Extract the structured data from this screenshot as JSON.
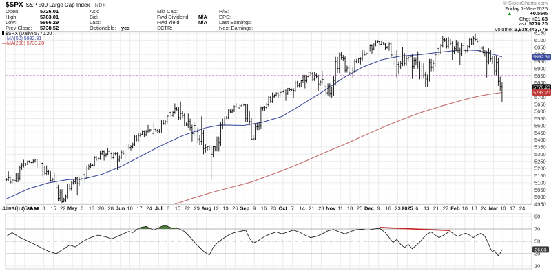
{
  "header": {
    "symbol": "$SPX",
    "name": "S&P 500 Large Cap Index",
    "exchange": "INDX"
  },
  "quote": {
    "columns": [
      {
        "rows": [
          {
            "label": "Open:",
            "value": "5726.01"
          },
          {
            "label": "High:",
            "value": "5783.01"
          },
          {
            "label": "Low:",
            "value": "5666.29"
          },
          {
            "label": "Prev Close:",
            "value": "5738.52"
          }
        ]
      },
      {
        "rows": [
          {
            "label": "Ask:",
            "value": ""
          },
          {
            "label": "Bid:",
            "value": ""
          },
          {
            "label": "Last:",
            "value": ""
          },
          {
            "label": "Optionable:",
            "value": "yes"
          }
        ]
      },
      {
        "rows": [
          {
            "label": "Mkt Cap:",
            "value": ""
          },
          {
            "label": "Fwd Dividend:",
            "value": "N/A"
          },
          {
            "label": "Fwd Yield:",
            "value": "N/A"
          },
          {
            "label": "SCTR:",
            "value": ""
          }
        ]
      },
      {
        "rows": [
          {
            "label": "P/E:",
            "value": ""
          },
          {
            "label": "EPS:",
            "value": ""
          },
          {
            "label": "Last Earnings:",
            "value": ""
          },
          {
            "label": "Next Earnings:",
            "value": ""
          }
        ]
      }
    ]
  },
  "right_panel": {
    "lines": [
      {
        "name": "copyright",
        "value": "© StockCharts.com",
        "gray": true
      },
      {
        "name": "date",
        "value": "Friday 7-Mar-2025"
      },
      {
        "name": "pct-change",
        "value": "+0.55%",
        "bold": true,
        "arrow": true
      },
      {
        "name": "change",
        "label": "Chg:",
        "value": "+31.68",
        "bold": true
      },
      {
        "name": "last",
        "label": "Last:",
        "value": "5770.20",
        "bold": true
      },
      {
        "name": "volume",
        "label": "Volume:",
        "value": "3,938,443,776",
        "bold": true
      }
    ]
  },
  "icons": {
    "up_triangle": "▲",
    "line_dash": "—"
  },
  "legend": {
    "main": "$SPX (Daily) 5770.20",
    "ma50": "MA(50) 5982.31",
    "ma200": "MA(200) 5733.20"
  },
  "rsi": {
    "title": "RSI(14)",
    "value": "36.83"
  },
  "colors": {
    "grid": "#ebebeb",
    "pane_border": "#c8c8c8",
    "bar": "#111111",
    "ma50": "#3d4b9e",
    "ma200": "#c46a6a",
    "purple_line": "#b23ab2",
    "axis_text": "#333333",
    "rsi_line": "#222222",
    "rsi_green": "#4e7d3e",
    "rsi_trend": "#cc2222",
    "flag_last_bg": "#111111",
    "flag_ma50_bg": "#3d4b9e",
    "flag_ma200_bg": "#c03a3a",
    "flag_rsi_bg": "#3b3b3b"
  },
  "chart_data": {
    "type": "ohlc",
    "title": "$SPX (Daily)",
    "y_axis": {
      "min": 4950,
      "max": 6150,
      "step": 50
    },
    "rsi_axis": [
      90,
      70,
      50,
      30,
      10
    ],
    "x_labels": [
      "11",
      "18",
      "25",
      "Apr",
      "8",
      "15",
      "22",
      "May",
      "6",
      "13",
      "20",
      "28",
      "Jun",
      "10",
      "17",
      "24",
      "Jul",
      "8",
      "15",
      "22",
      "29",
      "Aug",
      "12",
      "19",
      "26",
      "Sep",
      "9",
      "16",
      "23",
      "Oct",
      "7",
      "14",
      "21",
      "28",
      "Nov",
      "11",
      "18",
      "25",
      "Dec",
      "9",
      "16",
      "23",
      "2025",
      "6",
      "13",
      "21",
      "27",
      "Feb",
      "10",
      "18",
      "24",
      "Mar",
      "10",
      "17",
      "24"
    ],
    "weeks_total": 55,
    "weekly_ohlc": [
      [
        5123,
        5180,
        5092,
        5117
      ],
      [
        5117,
        5261,
        5104,
        5234
      ],
      [
        5234,
        5264,
        5216,
        5254
      ],
      [
        5254,
        5264,
        5146,
        5204
      ],
      [
        5204,
        5222,
        5107,
        5123
      ],
      [
        5123,
        5168,
        4954,
        4967
      ],
      [
        4967,
        5114,
        4963,
        5100
      ],
      [
        5100,
        5139,
        5011,
        5128
      ],
      [
        5128,
        5239,
        5101,
        5223
      ],
      [
        5223,
        5325,
        5217,
        5303
      ],
      [
        5303,
        5342,
        5256,
        5305
      ],
      [
        5305,
        5315,
        5191,
        5278
      ],
      [
        5278,
        5375,
        5234,
        5347
      ],
      [
        5347,
        5447,
        5327,
        5432
      ],
      [
        5432,
        5505,
        5420,
        5465
      ],
      [
        5465,
        5523,
        5434,
        5460
      ],
      [
        5460,
        5570,
        5446,
        5567
      ],
      [
        5567,
        5656,
        5563,
        5615
      ],
      [
        5615,
        5670,
        5497,
        5505
      ],
      [
        5505,
        5585,
        5390,
        5459
      ],
      [
        5459,
        5566,
        5300,
        5347
      ],
      [
        5347,
        5358,
        5119,
        5344
      ],
      [
        5344,
        5563,
        5319,
        5554
      ],
      [
        5554,
        5643,
        5546,
        5634
      ],
      [
        5634,
        5652,
        5560,
        5648
      ],
      [
        5648,
        5651,
        5403,
        5408
      ],
      [
        5408,
        5636,
        5402,
        5626
      ],
      [
        5626,
        5733,
        5604,
        5703
      ],
      [
        5703,
        5767,
        5696,
        5738
      ],
      [
        5738,
        5765,
        5674,
        5751
      ],
      [
        5751,
        5822,
        5696,
        5815
      ],
      [
        5815,
        5878,
        5762,
        5865
      ],
      [
        5865,
        5878,
        5743,
        5808
      ],
      [
        5808,
        5886,
        5703,
        5729
      ],
      [
        5729,
        6012,
        5697,
        5996
      ],
      [
        5996,
        6017,
        5853,
        5871
      ],
      [
        5871,
        5972,
        5832,
        5969
      ],
      [
        5969,
        6044,
        5930,
        6032
      ],
      [
        6032,
        6100,
        6003,
        6090
      ],
      [
        6090,
        6092,
        6033,
        6051
      ],
      [
        6051,
        6085,
        5832,
        5931
      ],
      [
        5931,
        6049,
        5866,
        5971
      ],
      [
        5971,
        6021,
        5829,
        5942
      ],
      [
        5942,
        6022,
        5773,
        5827
      ],
      [
        5827,
        6018,
        5773,
        5997
      ],
      [
        5997,
        6128,
        5994,
        6101
      ],
      [
        6101,
        6121,
        5962,
        6041
      ],
      [
        6041,
        6102,
        5923,
        6026
      ],
      [
        6026,
        6127,
        6003,
        6115
      ],
      [
        6115,
        6147,
        6008,
        6013
      ],
      [
        6013,
        6043,
        5837,
        5955
      ],
      [
        5955,
        5986,
        5666,
        5770
      ]
    ],
    "ma50_points": [
      [
        0,
        4988
      ],
      [
        12,
        5060
      ],
      [
        22,
        5100
      ],
      [
        32,
        5122
      ],
      [
        40,
        5126
      ],
      [
        50,
        5160
      ],
      [
        60,
        5215
      ],
      [
        70,
        5285
      ],
      [
        80,
        5355
      ],
      [
        92,
        5430
      ],
      [
        104,
        5485
      ],
      [
        112,
        5505
      ],
      [
        124,
        5502
      ],
      [
        134,
        5525
      ],
      [
        144,
        5565
      ],
      [
        154,
        5645
      ],
      [
        166,
        5745
      ],
      [
        176,
        5835
      ],
      [
        186,
        5910
      ],
      [
        196,
        5962
      ],
      [
        206,
        5988
      ],
      [
        216,
        5998
      ],
      [
        228,
        6018
      ],
      [
        238,
        6032
      ],
      [
        246,
        6028
      ],
      [
        252,
        6010
      ],
      [
        259,
        5982
      ]
    ],
    "ma200_points": [
      [
        88,
        4950
      ],
      [
        98,
        4995
      ],
      [
        108,
        5035
      ],
      [
        118,
        5070
      ],
      [
        128,
        5105
      ],
      [
        138,
        5155
      ],
      [
        146,
        5195
      ],
      [
        156,
        5250
      ],
      [
        166,
        5310
      ],
      [
        176,
        5365
      ],
      [
        186,
        5425
      ],
      [
        196,
        5485
      ],
      [
        206,
        5540
      ],
      [
        216,
        5590
      ],
      [
        228,
        5640
      ],
      [
        238,
        5678
      ],
      [
        246,
        5705
      ],
      [
        252,
        5720
      ],
      [
        259,
        5733
      ]
    ],
    "rsi_points": [
      [
        0,
        58
      ],
      [
        3,
        64
      ],
      [
        6,
        58
      ],
      [
        10,
        52
      ],
      [
        14,
        46
      ],
      [
        18,
        40
      ],
      [
        22,
        34
      ],
      [
        26,
        30
      ],
      [
        29,
        36
      ],
      [
        33,
        44
      ],
      [
        36,
        41
      ],
      [
        40,
        50
      ],
      [
        44,
        56
      ],
      [
        48,
        60
      ],
      [
        52,
        57
      ],
      [
        55,
        54
      ],
      [
        58,
        58
      ],
      [
        61,
        62
      ],
      [
        64,
        66
      ],
      [
        66,
        64
      ],
      [
        69,
        71
      ],
      [
        71,
        73
      ],
      [
        73,
        74
      ],
      [
        75,
        71
      ],
      [
        77,
        68
      ],
      [
        79,
        71
      ],
      [
        81,
        74
      ],
      [
        83,
        76
      ],
      [
        85,
        73
      ],
      [
        87,
        71
      ],
      [
        89,
        72
      ],
      [
        91,
        69
      ],
      [
        93,
        66
      ],
      [
        95,
        60
      ],
      [
        97,
        53
      ],
      [
        99,
        46
      ],
      [
        101,
        40
      ],
      [
        103,
        34
      ],
      [
        106,
        28
      ],
      [
        108,
        40
      ],
      [
        110,
        47
      ],
      [
        113,
        54
      ],
      [
        116,
        60
      ],
      [
        119,
        64
      ],
      [
        122,
        66
      ],
      [
        125,
        68
      ],
      [
        127,
        55
      ],
      [
        129,
        47
      ],
      [
        132,
        52
      ],
      [
        135,
        58
      ],
      [
        138,
        62
      ],
      [
        141,
        65
      ],
      [
        144,
        62
      ],
      [
        147,
        65
      ],
      [
        150,
        68
      ],
      [
        153,
        65
      ],
      [
        156,
        60
      ],
      [
        159,
        56
      ],
      [
        162,
        58
      ],
      [
        165,
        62
      ],
      [
        168,
        67
      ],
      [
        171,
        69
      ],
      [
        174,
        65
      ],
      [
        177,
        62
      ],
      [
        180,
        66
      ],
      [
        183,
        69
      ],
      [
        186,
        69.5
      ],
      [
        189,
        68
      ],
      [
        192,
        70
      ],
      [
        195,
        71
      ],
      [
        198,
        64
      ],
      [
        200,
        56
      ],
      [
        202,
        48
      ],
      [
        204,
        53
      ],
      [
        206,
        45
      ],
      [
        208,
        40
      ],
      [
        210,
        45
      ],
      [
        212,
        38
      ],
      [
        214,
        43
      ],
      [
        216,
        49
      ],
      [
        218,
        56
      ],
      [
        220,
        62
      ],
      [
        222,
        65
      ],
      [
        224,
        60
      ],
      [
        226,
        56
      ],
      [
        228,
        59
      ],
      [
        230,
        63
      ],
      [
        232,
        66
      ],
      [
        234,
        61
      ],
      [
        236,
        58
      ],
      [
        238,
        61
      ],
      [
        240,
        63
      ],
      [
        242,
        60
      ],
      [
        244,
        56
      ],
      [
        246,
        60
      ],
      [
        248,
        63
      ],
      [
        250,
        58
      ],
      [
        251,
        52
      ],
      [
        252,
        45
      ],
      [
        253,
        38
      ],
      [
        254,
        33
      ],
      [
        255,
        36
      ],
      [
        256,
        30
      ],
      [
        257,
        27
      ],
      [
        258,
        31
      ],
      [
        259,
        36.83
      ]
    ],
    "annotations": {
      "purple_hline_value": 5850,
      "rsi_trendline": {
        "d1": 195,
        "v1": 72.5,
        "d2": 232,
        "v2": 67.5
      },
      "overbought": 70,
      "oversold": 30,
      "midline": 50
    },
    "axis_flags": [
      {
        "value": 5982.31,
        "text": "5982.31",
        "bg": "flag_ma50_bg"
      },
      {
        "value": 5770.2,
        "text": "5770.20",
        "bg": "flag_last_bg"
      },
      {
        "value": 5733.2,
        "text": "5733.20",
        "bg": "flag_ma200_bg"
      }
    ],
    "rsi_flag": {
      "value": 36.83,
      "text": "36.83",
      "bg": "flag_rsi_bg"
    }
  }
}
